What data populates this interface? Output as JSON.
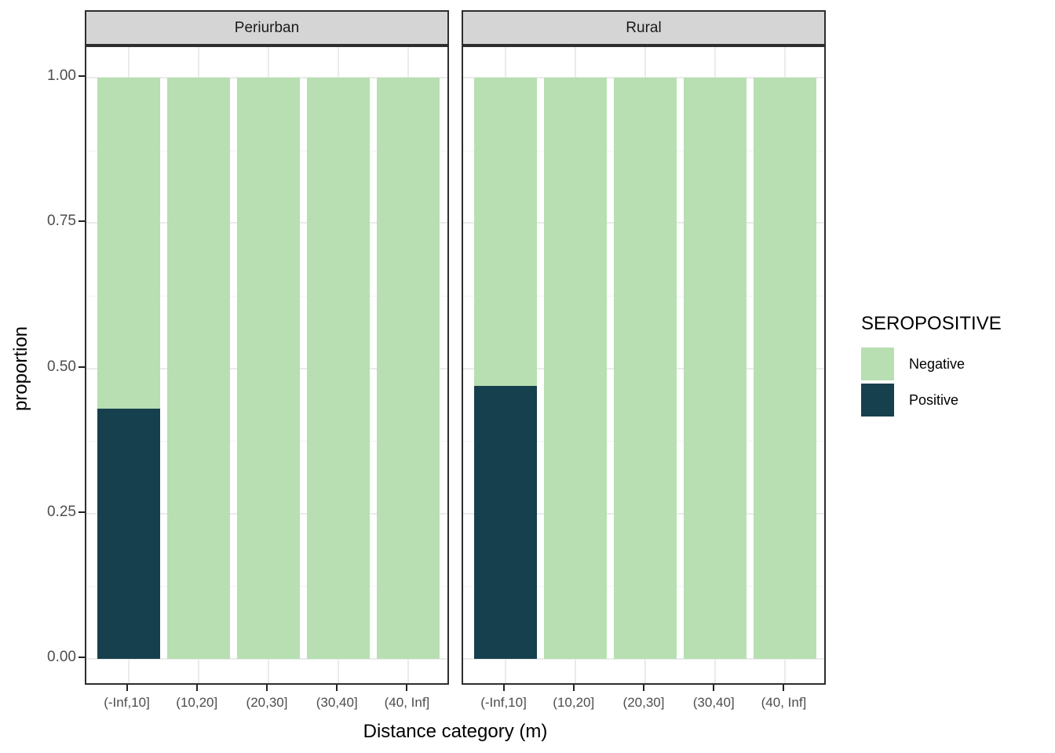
{
  "chart_data": {
    "type": "bar",
    "stacked": true,
    "orientation": "vertical",
    "xlabel": "Distance category (m)",
    "ylabel": "proportion",
    "ylim": [
      0,
      1
    ],
    "grid": true,
    "legend_position": "right",
    "yticks": [
      0,
      0.25,
      0.5,
      0.75,
      1
    ],
    "ytick_labels": [
      "0.00",
      "0.25",
      "0.50",
      "0.75",
      "1.00"
    ],
    "yticks_minor": [
      0.125,
      0.375,
      0.625,
      0.875
    ],
    "categories": [
      "(-Inf,10]",
      "(10,20]",
      "(20,30]",
      "(30,40]",
      "(40, Inf]"
    ],
    "facets": [
      {
        "label": "Periurban",
        "stacks": [
          {
            "name": "Positive",
            "values": [
              0.43,
              0,
              0,
              0,
              0
            ]
          },
          {
            "name": "Negative",
            "values": [
              0.57,
              1,
              1,
              1,
              1
            ]
          }
        ]
      },
      {
        "label": "Rural",
        "stacks": [
          {
            "name": "Positive",
            "values": [
              0.47,
              0,
              0,
              0,
              0
            ]
          },
          {
            "name": "Negative",
            "values": [
              0.53,
              1,
              1,
              1,
              1
            ]
          }
        ]
      }
    ],
    "legend": {
      "title": "SEROPOSITIVE",
      "entries": [
        {
          "label": "Negative",
          "color": "#B7DFB1"
        },
        {
          "label": "Positive",
          "color": "#17404E"
        }
      ]
    }
  },
  "colors": {
    "strip_fill": "#D5D5D5",
    "panel_border": "#2E2E2E",
    "gridline_major": "#EBEBEB",
    "gridline_minor": "#F2F2F2",
    "axis_text": "#4D4D4D",
    "tick_mark": "#222222",
    "negative_fill": "#B7DFB1",
    "positive_fill": "#17404E"
  }
}
